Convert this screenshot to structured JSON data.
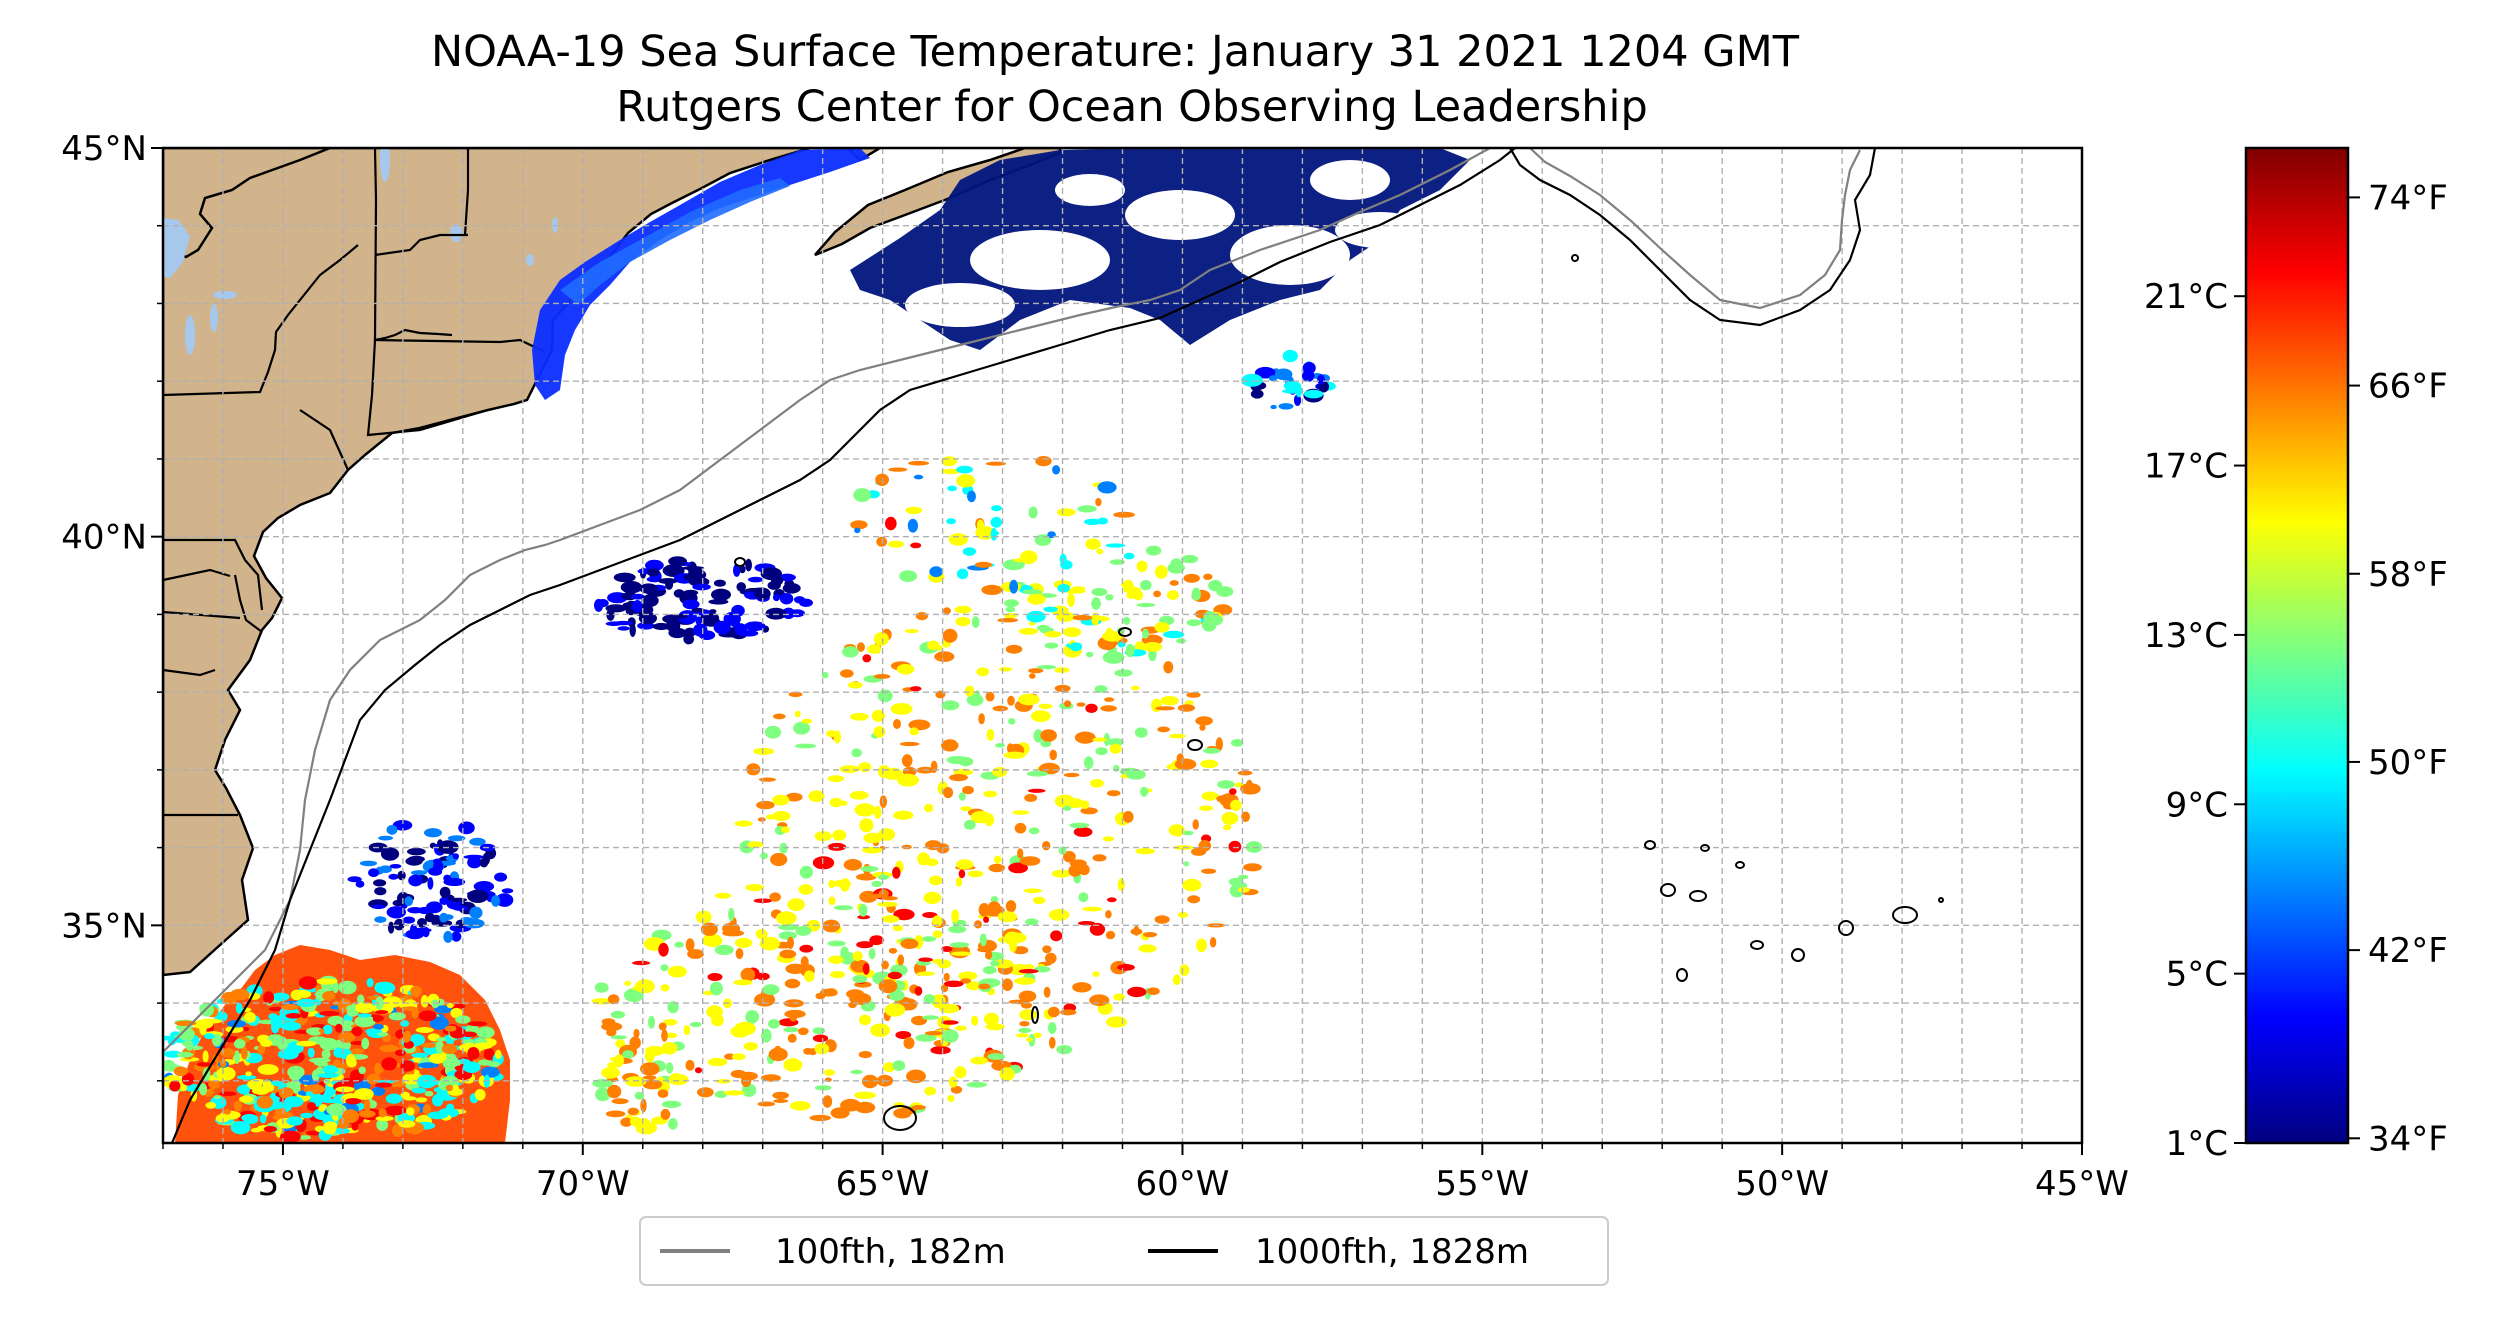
{
  "title": {
    "line1": "NOAA-19 Sea Surface Temperature: January 31 2021 1204 GMT",
    "line2": "Rutgers Center for Ocean Observing Leadership"
  },
  "map": {
    "lon_range": [
      -77,
      -45
    ],
    "lat_range": [
      32.2,
      45
    ],
    "lon_ticks": [
      {
        "value": -75,
        "label": "75°W"
      },
      {
        "value": -70,
        "label": "70°W"
      },
      {
        "value": -65,
        "label": "65°W"
      },
      {
        "value": -60,
        "label": "60°W"
      },
      {
        "value": -55,
        "label": "55°W"
      },
      {
        "value": -50,
        "label": "50°W"
      },
      {
        "value": -45,
        "label": "45°W"
      }
    ],
    "lat_ticks": [
      {
        "value": 45,
        "label": "45°N"
      },
      {
        "value": 40,
        "label": "40°N"
      },
      {
        "value": 35,
        "label": "35°N"
      }
    ],
    "land_color": "#d2b48c",
    "water_body_color": "#a6c8ec",
    "grid": true,
    "grid_step_degrees": 1
  },
  "colorbar": {
    "colormap": "jet",
    "stops": [
      "#00007f",
      "#0000ff",
      "#007fff",
      "#00ffff",
      "#7fff7f",
      "#ffff00",
      "#ff7f00",
      "#ff0000",
      "#7f0000"
    ],
    "range_celsius": [
      1,
      24.5
    ],
    "celsius_ticks": [
      {
        "value": 1,
        "label": "1°C"
      },
      {
        "value": 5,
        "label": "5°C"
      },
      {
        "value": 9,
        "label": "9°C"
      },
      {
        "value": 13,
        "label": "13°C"
      },
      {
        "value": 17,
        "label": "17°C"
      },
      {
        "value": 21,
        "label": "21°C"
      }
    ],
    "fahrenheit_ticks": [
      {
        "value": 34,
        "label": "34°F"
      },
      {
        "value": 42,
        "label": "42°F"
      },
      {
        "value": 50,
        "label": "50°F"
      },
      {
        "value": 58,
        "label": "58°F"
      },
      {
        "value": 66,
        "label": "66°F"
      },
      {
        "value": 74,
        "label": "74°F"
      }
    ]
  },
  "legend": {
    "placement": "bottom-center",
    "entries": [
      {
        "label": "100fth, 182m",
        "color": "#808080"
      },
      {
        "label": "1000fth, 1828m",
        "color": "#000000"
      }
    ]
  }
}
